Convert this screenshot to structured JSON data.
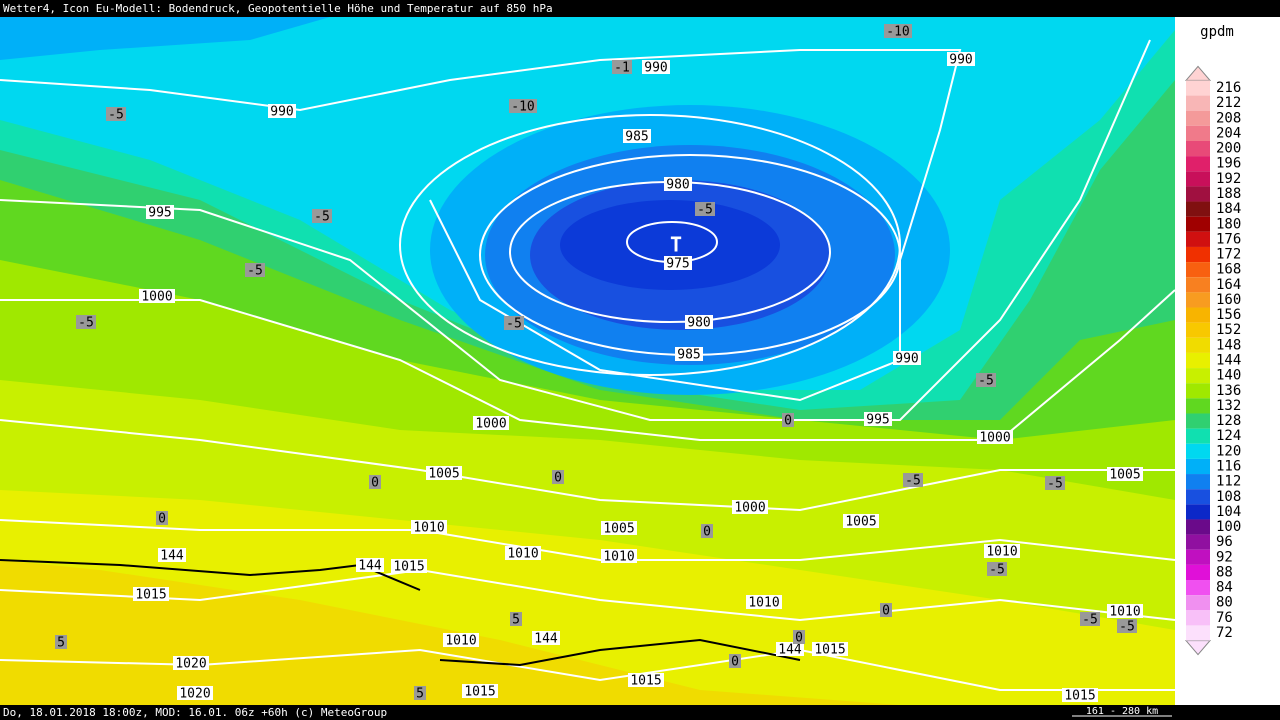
{
  "header": {
    "title": "Wetter4, Icon Eu-Modell: Bodendruck, Geopotentielle Höhe und Temperatur auf 850 hPa"
  },
  "footer": {
    "info": "Do, 18.01.2018 18:00z, MOD: 16.01. 06z +60h (c) MeteoGroup",
    "scale": "161 - 280 km"
  },
  "legend": {
    "unit": "gpdm",
    "levels": [
      216,
      212,
      208,
      204,
      200,
      196,
      192,
      188,
      184,
      180,
      176,
      172,
      168,
      164,
      160,
      156,
      152,
      148,
      144,
      140,
      136,
      132,
      128,
      124,
      120,
      116,
      112,
      108,
      104,
      100,
      96,
      92,
      88,
      84,
      80,
      76,
      72
    ],
    "colors": [
      "#ffd3d3",
      "#f8b6b6",
      "#f49a9a",
      "#f07a8a",
      "#e84a78",
      "#e0206a",
      "#c8105a",
      "#a01040",
      "#801010",
      "#a00000",
      "#d01010",
      "#f03000",
      "#f86010",
      "#f88020",
      "#f89c20",
      "#f8b400",
      "#f8c800",
      "#f0dc00",
      "#e8f000",
      "#c8f000",
      "#a0e800",
      "#60d820",
      "#30d070",
      "#10e0b0",
      "#00d8f0",
      "#00b0f8",
      "#1080f0",
      "#1850e0",
      "#0c28c8",
      "#6a0a8a",
      "#9010a0",
      "#c010c0",
      "#e010d8",
      "#f050f0",
      "#f090f0",
      "#f8c0f8",
      "#fce0fc"
    ]
  },
  "isobar_labels": [
    990,
    990,
    990,
    985,
    980,
    975,
    980,
    985,
    990,
    995,
    1000,
    1000,
    995,
    1000,
    1005,
    1005,
    1000,
    1005,
    1005,
    1010,
    1010,
    1010,
    1010,
    1015,
    1015,
    1010,
    1010,
    1015,
    1020,
    1010,
    1015,
    1015,
    1020,
    1015
  ],
  "height_labels": [
    144,
    144,
    144,
    144
  ],
  "temperature_labels": [
    -5,
    -1,
    -10,
    -10,
    -5,
    -5,
    -5,
    -5,
    -5,
    -5,
    0,
    0,
    0,
    -5,
    -5,
    0,
    0,
    -5,
    5,
    0,
    -5,
    -5,
    0,
    5,
    0,
    5
  ],
  "pressure_center": "T"
}
